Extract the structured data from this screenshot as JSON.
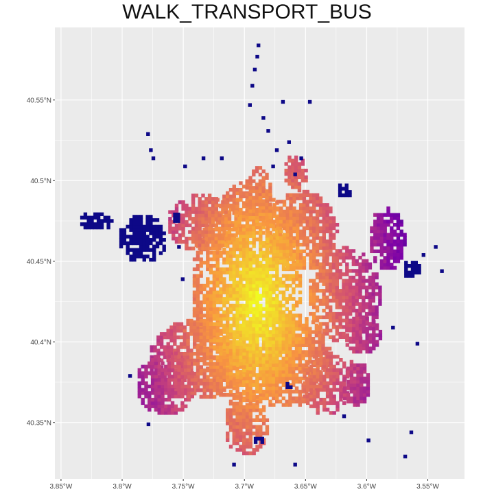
{
  "title": "WALK_TRANSPORT_BUS",
  "chart_data": {
    "type": "heatmap",
    "title": "WALK_TRANSPORT_BUS",
    "xlabel": "",
    "ylabel": "",
    "xlim": [
      -3.855,
      -3.52
    ],
    "ylim": [
      40.315,
      40.595
    ],
    "x_ticks": [
      {
        "value": -3.85,
        "label": "3.85°W"
      },
      {
        "value": -3.8,
        "label": "3.8°W"
      },
      {
        "value": -3.75,
        "label": "3.75°W"
      },
      {
        "value": -3.7,
        "label": "3.7°W"
      },
      {
        "value": -3.65,
        "label": "3.65°W"
      },
      {
        "value": -3.6,
        "label": "3.6°W"
      },
      {
        "value": -3.55,
        "label": "3.55°W"
      }
    ],
    "y_ticks": [
      {
        "value": 40.35,
        "label": "40.35°N"
      },
      {
        "value": 40.4,
        "label": "40.4°N"
      },
      {
        "value": 40.45,
        "label": "40.45°N"
      },
      {
        "value": 40.5,
        "label": "40.5°N"
      },
      {
        "value": 40.55,
        "label": "40.55°N"
      }
    ],
    "grid": true,
    "legend": "none",
    "colormap": "plasma",
    "colors": {
      "panel_background": "#ebebeb",
      "grid": "#ffffff",
      "low": "#0d0887",
      "mid": "#9c179e",
      "high": "#f0f921"
    },
    "hotspot": {
      "lon": -3.69,
      "lat": 40.425
    },
    "clusters": [
      {
        "lon": -3.7,
        "lat": 40.43,
        "radius_lon": 0.045,
        "radius_lat": 0.07,
        "value": 0.85
      },
      {
        "lon": -3.735,
        "lat": 40.475,
        "radius_lon": 0.03,
        "radius_lat": 0.018,
        "value": 0.45
      },
      {
        "lon": -3.655,
        "lat": 40.47,
        "radius_lon": 0.03,
        "radius_lat": 0.025,
        "value": 0.4
      },
      {
        "lon": -3.62,
        "lat": 40.43,
        "radius_lon": 0.03,
        "radius_lat": 0.03,
        "value": 0.35
      },
      {
        "lon": -3.67,
        "lat": 40.39,
        "radius_lon": 0.04,
        "radius_lat": 0.03,
        "value": 0.5
      },
      {
        "lon": -3.74,
        "lat": 40.39,
        "radius_lon": 0.04,
        "radius_lat": 0.025,
        "value": 0.4
      },
      {
        "lon": -3.765,
        "lat": 40.375,
        "radius_lon": 0.025,
        "radius_lat": 0.02,
        "value": 0.32
      },
      {
        "lon": -3.635,
        "lat": 40.375,
        "radius_lon": 0.02,
        "radius_lat": 0.02,
        "value": 0.3
      },
      {
        "lon": -3.605,
        "lat": 40.405,
        "radius_lon": 0.015,
        "radius_lat": 0.012,
        "value": 0.3
      },
      {
        "lon": -3.7,
        "lat": 40.35,
        "radius_lon": 0.018,
        "radius_lat": 0.02,
        "value": 0.28
      },
      {
        "lon": -3.69,
        "lat": 40.49,
        "radius_lon": 0.012,
        "radius_lat": 0.02,
        "value": 0.25
      },
      {
        "lon": -3.66,
        "lat": 40.505,
        "radius_lon": 0.01,
        "radius_lat": 0.012,
        "value": 0.2
      },
      {
        "lon": -3.585,
        "lat": 40.465,
        "radius_lon": 0.015,
        "radius_lat": 0.02,
        "value": 0.18
      },
      {
        "lon": -3.61,
        "lat": 40.375,
        "radius_lon": 0.012,
        "radius_lat": 0.015,
        "value": 0.22
      },
      {
        "lon": -3.785,
        "lat": 40.465,
        "radius_lon": 0.02,
        "radius_lat": 0.015,
        "value": 0.0
      },
      {
        "lon": -3.823,
        "lat": 40.476,
        "radius_lon": 0.014,
        "radius_lat": 0.006,
        "value": 0.0
      },
      {
        "lon": -3.565,
        "lat": 40.446,
        "radius_lon": 0.007,
        "radius_lat": 0.006,
        "value": 0.0
      },
      {
        "lon": -3.62,
        "lat": 40.495,
        "radius_lon": 0.006,
        "radius_lat": 0.005,
        "value": 0.0
      },
      {
        "lon": -3.757,
        "lat": 40.478,
        "radius_lon": 0.004,
        "radius_lat": 0.004,
        "value": 0.0
      },
      {
        "lon": -3.781,
        "lat": 40.532,
        "radius_lon": 0.002,
        "radius_lat": 0.004,
        "value": 0.0
      },
      {
        "lon": -3.665,
        "lat": 40.374,
        "radius_lon": 0.004,
        "radius_lat": 0.003,
        "value": 0.0
      },
      {
        "lon": -3.69,
        "lat": 40.34,
        "radius_lon": 0.005,
        "radius_lat": 0.003,
        "value": 0.0
      }
    ]
  }
}
